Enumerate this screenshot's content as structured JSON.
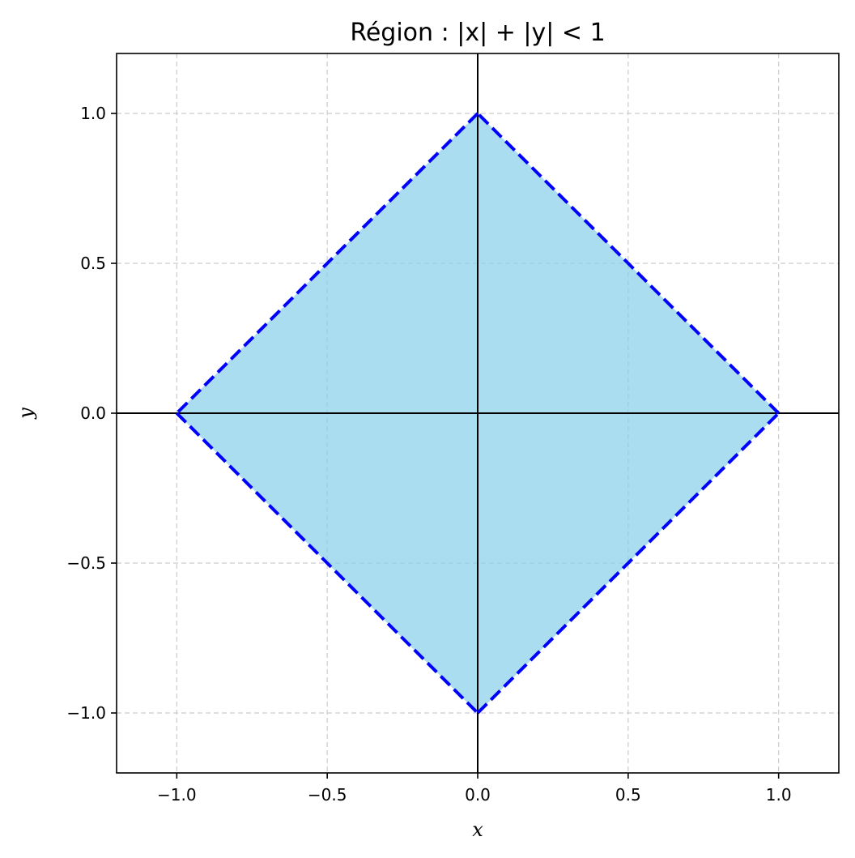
{
  "chart_data": {
    "type": "area",
    "title": "Région : |x| + |y| < 1",
    "xlabel": "x",
    "ylabel": "y",
    "xlim": [
      -1.2,
      1.2
    ],
    "ylim": [
      -1.2,
      1.2
    ],
    "grid": true,
    "grid_style": "dashed",
    "x_ticks": [
      -1.0,
      -0.5,
      0.0,
      0.5,
      1.0
    ],
    "y_ticks": [
      -1.0,
      -0.5,
      0.0,
      0.5,
      1.0
    ],
    "x_tick_labels": [
      "−1.0",
      "−0.5",
      "0.0",
      "0.5",
      "1.0"
    ],
    "y_tick_labels": [
      "−1.0",
      "−0.5",
      "0.0",
      "0.5",
      "1.0"
    ],
    "reference_lines": {
      "x": 0,
      "y": 0,
      "color": "#000000"
    },
    "region": {
      "vertices": [
        [
          1,
          0
        ],
        [
          0,
          1
        ],
        [
          -1,
          0
        ],
        [
          0,
          -1
        ]
      ],
      "fill_color": "#87ceeb",
      "fill_alpha": 0.7,
      "boundary_color": "#0000ff",
      "boundary_style": "dashed"
    }
  }
}
